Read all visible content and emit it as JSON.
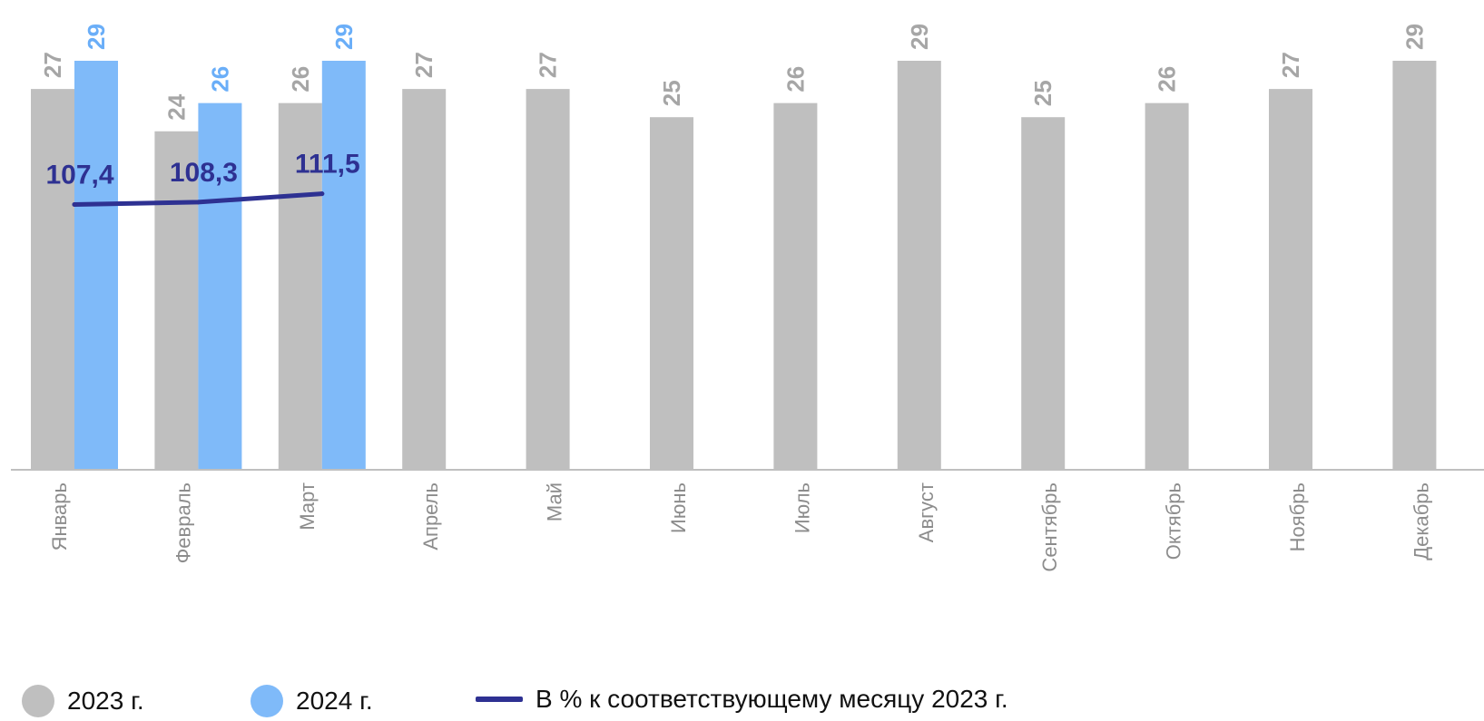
{
  "chart_data": {
    "type": "bar",
    "categories": [
      "Январь",
      "Февраль",
      "Март",
      "Апрель",
      "Май",
      "Июнь",
      "Июль",
      "Август",
      "Сентябрь",
      "Октябрь",
      "Ноябрь",
      "Декабрь"
    ],
    "series": [
      {
        "name": "2023 г.",
        "color": "#bfbfbf",
        "label_color": "#a6a6a6",
        "values": [
          27,
          24,
          26,
          27,
          27,
          25,
          26,
          29,
          25,
          26,
          27,
          29
        ]
      },
      {
        "name": "2024 г.",
        "color": "#7fbaf9",
        "label_color": "#6aaef8",
        "values": [
          29,
          26,
          29,
          null,
          null,
          null,
          null,
          null,
          null,
          null,
          null,
          null
        ]
      }
    ],
    "line_series": {
      "name": "В % к соответствующему месяцу 2023 г.",
      "color": "#2e3192",
      "values": [
        107.4,
        108.3,
        111.5,
        null,
        null,
        null,
        null,
        null,
        null,
        null,
        null,
        null
      ],
      "labels": [
        "107,4",
        "108,3",
        "111,5"
      ]
    },
    "ylim": [
      0,
      29
    ],
    "grid": false,
    "legend_position": "bottom"
  }
}
